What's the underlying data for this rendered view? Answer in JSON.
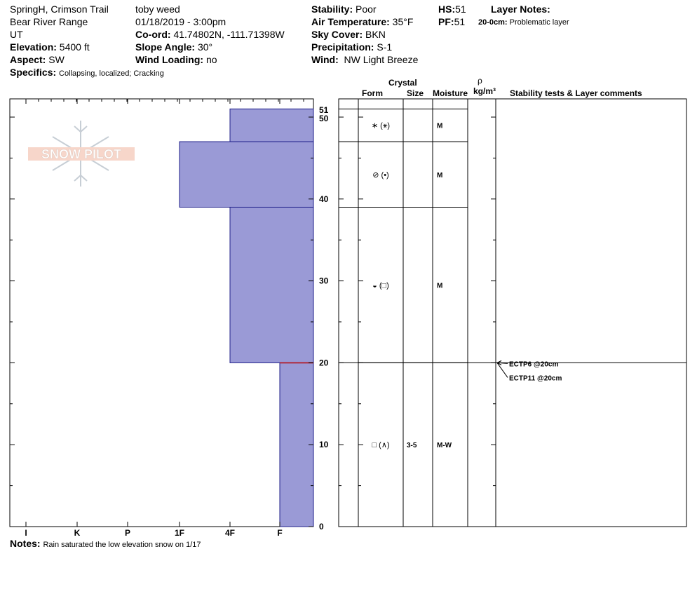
{
  "header": {
    "location": "SpringH, Crimson Trail",
    "range": "Bear River Range",
    "state": "UT",
    "elevation_label": "Elevation:",
    "elevation": "5400 ft",
    "aspect_label": "Aspect:",
    "aspect": "SW",
    "specifics_label": "Specifics:",
    "specifics": "Collapsing, localized;  Cracking",
    "observer": "toby weed",
    "datetime": "01/18/2019 - 3:00pm",
    "coord_label": "Co-ord:",
    "coord": "41.74802N, -111.71398W",
    "slope_label": "Slope Angle:",
    "slope": "30°",
    "wind_loading_label": "Wind Loading:",
    "wind_loading": "no",
    "stability_label": "Stability:",
    "stability": "Poor",
    "air_temp_label": "Air Temperature:",
    "air_temp": "35°F",
    "sky_label": "Sky Cover:",
    "sky": "BKN",
    "precip_label": "Precipitation:",
    "precip": "S-1",
    "wind_label": "Wind:",
    "wind": "NW Light Breeze",
    "hs_label": "HS:",
    "hs": "51",
    "pf_label": "PF:",
    "pf": "51",
    "layer_notes_label": "Layer Notes:",
    "layer_note_range": "20-0cm:",
    "layer_note_text": "Problematic layer"
  },
  "logo": {
    "text": "SNOW PILOT"
  },
  "columns": {
    "crystal": "Crystal",
    "form": "Form",
    "size": "Size",
    "moisture": "Moisture",
    "rho": "ρ",
    "density_unit": "kg/m³",
    "comments": "Stability tests & Layer comments"
  },
  "notes": {
    "label": "Notes:",
    "text": "Rain saturated the  low elevation snow on 1/17"
  },
  "chart_data": {
    "type": "bar",
    "hardness_labels": [
      "I",
      "K",
      "P",
      "1F",
      "4F",
      "F"
    ],
    "height_ticks": [
      "51",
      "50",
      "40",
      "30",
      "20",
      "10",
      "0"
    ],
    "ylim": [
      0,
      51
    ],
    "total_height": 51,
    "layers": [
      {
        "top": 51,
        "bottom": 47,
        "hardness": "4F",
        "form": "∗ (⚹)",
        "size": "",
        "moisture": "M"
      },
      {
        "top": 47,
        "bottom": 39,
        "hardness": "1F",
        "form": "⊘ (•)",
        "size": "",
        "moisture": "M"
      },
      {
        "top": 39,
        "bottom": 20,
        "hardness": "4F",
        "form": "◒ (□)",
        "size": "",
        "moisture": "M"
      },
      {
        "top": 20,
        "bottom": 0,
        "hardness": "F",
        "form": "□ (∧)",
        "size": "3-5",
        "moisture": "M-W"
      }
    ],
    "tests": [
      {
        "label": "ECTP6 @20cm",
        "height": 20
      },
      {
        "label": "ECTP11 @20cm",
        "height": 20
      }
    ],
    "problem_layer_height": 20
  }
}
